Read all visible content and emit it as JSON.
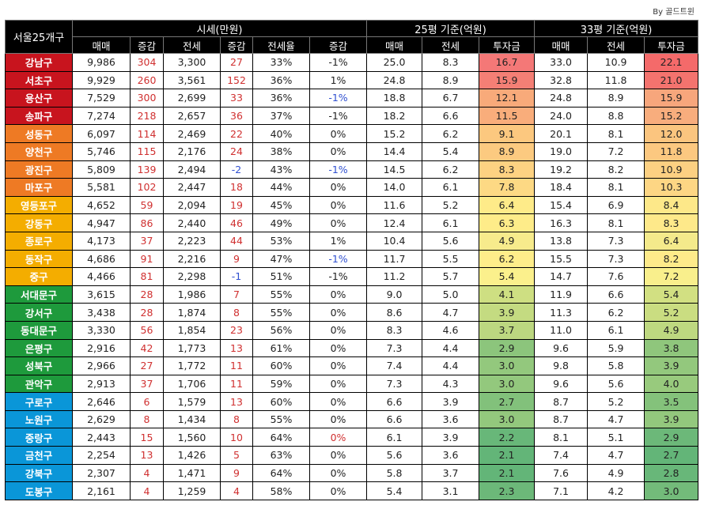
{
  "credit": "By 골드트윈",
  "header": {
    "corner": "서울25개구",
    "group_market": "시세(만원)",
    "group_25": "25평 기준(억원)",
    "group_33": "33평 기준(억원)",
    "cols": [
      "매매",
      "증감",
      "전세",
      "증감",
      "전세율",
      "증감",
      "매매",
      "전세",
      "투자금",
      "매매",
      "전세",
      "투자금"
    ]
  },
  "colors": {
    "red": "#c8141e",
    "orange": "#ee7a24",
    "yellow": "#f4ad00",
    "green": "#1e9a3c",
    "blue": "#0a96d8",
    "change_up": "#d03030",
    "change_down": "#3050d0"
  },
  "rows": [
    {
      "d": "강남구",
      "g": "red",
      "v": [
        "9,986",
        "304",
        "3,300",
        "27",
        "33%",
        "-1%",
        "25.0",
        "8.3",
        "16.7",
        "33.0",
        "10.9",
        "22.1"
      ],
      "rc": "",
      "i25": "#f47877",
      "i33": "#f46a6a"
    },
    {
      "d": "서초구",
      "g": "red",
      "v": [
        "9,929",
        "260",
        "3,561",
        "152",
        "36%",
        "1%",
        "24.8",
        "8.9",
        "15.9",
        "32.8",
        "11.8",
        "21.0"
      ],
      "rc": "",
      "i25": "#f47f75",
      "i33": "#f4736e"
    },
    {
      "d": "용산구",
      "g": "red",
      "v": [
        "7,529",
        "300",
        "2,699",
        "33",
        "36%",
        "-1%",
        "18.8",
        "6.7",
        "12.1",
        "24.8",
        "8.9",
        "15.9"
      ],
      "rc": "pos",
      "i25": "#f8aa7a",
      "i33": "#f7a67c"
    },
    {
      "d": "송파구",
      "g": "red",
      "v": [
        "7,274",
        "218",
        "2,657",
        "36",
        "37%",
        "-1%",
        "18.2",
        "6.6",
        "11.5",
        "24.0",
        "8.8",
        "15.2"
      ],
      "rc": "",
      "i25": "#f9ad7b",
      "i33": "#f8ad7d"
    },
    {
      "d": "성동구",
      "g": "orange",
      "v": [
        "6,097",
        "114",
        "2,469",
        "22",
        "40%",
        "0%",
        "15.2",
        "6.2",
        "9.1",
        "20.1",
        "8.1",
        "12.0"
      ],
      "rc": "",
      "i25": "#fcc87f",
      "i33": "#fbc57f"
    },
    {
      "d": "양천구",
      "g": "orange",
      "v": [
        "5,746",
        "115",
        "2,176",
        "24",
        "38%",
        "0%",
        "14.4",
        "5.4",
        "8.9",
        "19.0",
        "7.2",
        "11.8"
      ],
      "rc": "",
      "i25": "#fcca80",
      "i33": "#fcc880"
    },
    {
      "d": "광진구",
      "g": "orange",
      "v": [
        "5,809",
        "139",
        "2,494",
        "-2",
        "43%",
        "-1%",
        "14.5",
        "6.2",
        "8.3",
        "19.2",
        "8.2",
        "10.9"
      ],
      "rc": "pos",
      "i25": "#fdd282",
      "i33": "#fcd082"
    },
    {
      "d": "마포구",
      "g": "orange",
      "v": [
        "5,581",
        "102",
        "2,447",
        "18",
        "44%",
        "0%",
        "14.0",
        "6.1",
        "7.8",
        "18.4",
        "8.1",
        "10.3"
      ],
      "rc": "",
      "i25": "#fdd984",
      "i33": "#fdd684"
    },
    {
      "d": "영등포구",
      "g": "yellow",
      "v": [
        "4,652",
        "59",
        "2,094",
        "19",
        "45%",
        "0%",
        "11.6",
        "5.2",
        "6.4",
        "15.4",
        "6.9",
        "8.4"
      ],
      "rc": "",
      "i25": "#feeb89",
      "i33": "#fde889"
    },
    {
      "d": "강동구",
      "g": "yellow",
      "v": [
        "4,947",
        "86",
        "2,440",
        "46",
        "49%",
        "0%",
        "12.4",
        "6.1",
        "6.3",
        "16.3",
        "8.1",
        "8.3"
      ],
      "rc": "",
      "i25": "#feec89",
      "i33": "#fee98a"
    },
    {
      "d": "종로구",
      "g": "yellow",
      "v": [
        "4,173",
        "37",
        "2,223",
        "44",
        "53%",
        "1%",
        "10.4",
        "5.6",
        "4.9",
        "13.8",
        "7.3",
        "6.4"
      ],
      "rc": "",
      "i25": "#f7eb8c",
      "i33": "#f4ea8b"
    },
    {
      "d": "동작구",
      "g": "yellow",
      "v": [
        "4,686",
        "91",
        "2,216",
        "9",
        "47%",
        "-1%",
        "11.7",
        "5.5",
        "6.2",
        "15.5",
        "7.3",
        "8.2"
      ],
      "rc": "pos",
      "i25": "#feed8a",
      "i33": "#feea8a"
    },
    {
      "d": "중구",
      "g": "yellow",
      "v": [
        "4,466",
        "81",
        "2,298",
        "-1",
        "51%",
        "-1%",
        "11.2",
        "5.7",
        "5.4",
        "14.7",
        "7.6",
        "7.2"
      ],
      "rc": "",
      "i25": "#fbf08c",
      "i33": "#f9ef8c"
    },
    {
      "d": "서대문구",
      "g": "green",
      "v": [
        "3,615",
        "28",
        "1,986",
        "7",
        "55%",
        "0%",
        "9.0",
        "5.0",
        "4.1",
        "11.9",
        "6.6",
        "5.4"
      ],
      "rc": "",
      "i25": "#cedf82",
      "i33": "#d2e082"
    },
    {
      "d": "강서구",
      "g": "green",
      "v": [
        "3,438",
        "28",
        "1,874",
        "8",
        "55%",
        "0%",
        "8.6",
        "4.7",
        "3.9",
        "11.3",
        "6.2",
        "5.2"
      ],
      "rc": "",
      "i25": "#c4db81",
      "i33": "#cadd81"
    },
    {
      "d": "동대문구",
      "g": "green",
      "v": [
        "3,330",
        "56",
        "1,854",
        "23",
        "56%",
        "0%",
        "8.3",
        "4.6",
        "3.7",
        "11.0",
        "6.1",
        "4.9"
      ],
      "rc": "",
      "i25": "#bcd780",
      "i33": "#bed880"
    },
    {
      "d": "은평구",
      "g": "green",
      "v": [
        "2,916",
        "42",
        "1,773",
        "13",
        "61%",
        "0%",
        "7.3",
        "4.4",
        "2.9",
        "9.6",
        "5.9",
        "3.8"
      ],
      "rc": "",
      "i25": "#8cc57c",
      "i33": "#8fc67c"
    },
    {
      "d": "성북구",
      "g": "green",
      "v": [
        "2,966",
        "27",
        "1,772",
        "11",
        "60%",
        "0%",
        "7.4",
        "4.4",
        "3.0",
        "9.8",
        "5.8",
        "3.9"
      ],
      "rc": "",
      "i25": "#93c87d",
      "i33": "#93c87d"
    },
    {
      "d": "관악구",
      "g": "green",
      "v": [
        "2,913",
        "37",
        "1,706",
        "11",
        "59%",
        "0%",
        "7.3",
        "4.3",
        "3.0",
        "9.6",
        "5.6",
        "4.0"
      ],
      "rc": "",
      "i25": "#93c87d",
      "i33": "#98ca7d"
    },
    {
      "d": "구로구",
      "g": "blue",
      "v": [
        "2,646",
        "6",
        "1,579",
        "13",
        "60%",
        "0%",
        "6.6",
        "3.9",
        "2.7",
        "8.7",
        "5.2",
        "3.5"
      ],
      "rc": "",
      "i25": "#82c17b",
      "i33": "#84c27b"
    },
    {
      "d": "노원구",
      "g": "blue",
      "v": [
        "2,629",
        "8",
        "1,434",
        "8",
        "55%",
        "0%",
        "6.6",
        "3.6",
        "3.0",
        "8.7",
        "4.7",
        "3.9"
      ],
      "rc": "",
      "i25": "#93c87d",
      "i33": "#93c87d"
    },
    {
      "d": "중랑구",
      "g": "blue",
      "v": [
        "2,443",
        "15",
        "1,560",
        "10",
        "64%",
        "0%",
        "6.1",
        "3.9",
        "2.2",
        "8.1",
        "5.1",
        "2.9"
      ],
      "rc": "zero",
      "i25": "#68b779",
      "i33": "#6cb879"
    },
    {
      "d": "금천구",
      "g": "blue",
      "v": [
        "2,254",
        "13",
        "1,426",
        "5",
        "63%",
        "0%",
        "5.6",
        "3.6",
        "2.1",
        "7.4",
        "4.7",
        "2.7"
      ],
      "rc": "",
      "i25": "#63b578",
      "i33": "#63b578"
    },
    {
      "d": "강북구",
      "g": "blue",
      "v": [
        "2,307",
        "4",
        "1,471",
        "9",
        "64%",
        "0%",
        "5.8",
        "3.7",
        "2.1",
        "7.6",
        "4.9",
        "2.8"
      ],
      "rc": "",
      "i25": "#63b578",
      "i33": "#68b779"
    },
    {
      "d": "도봉구",
      "g": "blue",
      "v": [
        "2,161",
        "4",
        "1,259",
        "4",
        "58%",
        "0%",
        "5.4",
        "3.1",
        "2.3",
        "7.1",
        "4.2",
        "3.0"
      ],
      "rc": "",
      "i25": "#6cb879",
      "i33": "#73bb7a"
    }
  ]
}
